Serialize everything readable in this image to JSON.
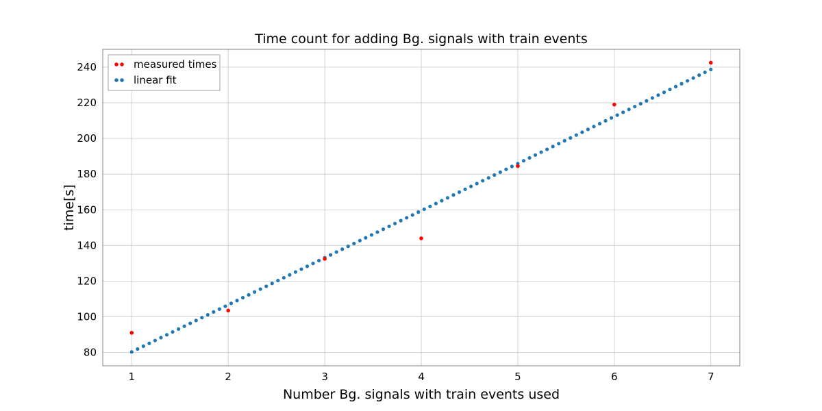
{
  "chart_data": {
    "type": "scatter",
    "title": "Time count for adding Bg. signals with train events",
    "xlabel": "Number Bg. signals with train events used",
    "ylabel": "time[s]",
    "xlim": [
      0.7,
      7.3
    ],
    "ylim": [
      72.5,
      250
    ],
    "xticks": [
      1,
      2,
      3,
      4,
      5,
      6,
      7
    ],
    "yticks": [
      80,
      100,
      120,
      140,
      160,
      180,
      200,
      220,
      240
    ],
    "grid": true,
    "legend_position": "top-left",
    "series": [
      {
        "name": "measured times",
        "color": "#ff0000",
        "x": [
          1,
          2,
          3,
          4,
          5,
          6,
          7
        ],
        "y": [
          91,
          103.5,
          132.5,
          144,
          184.5,
          219,
          242.5
        ]
      },
      {
        "name": "linear fit",
        "color": "#1f77b4",
        "fit": {
          "x_start": 1,
          "x_end": 7,
          "y_start": 80.3,
          "y_end": 238.7,
          "points": 100
        }
      }
    ]
  }
}
